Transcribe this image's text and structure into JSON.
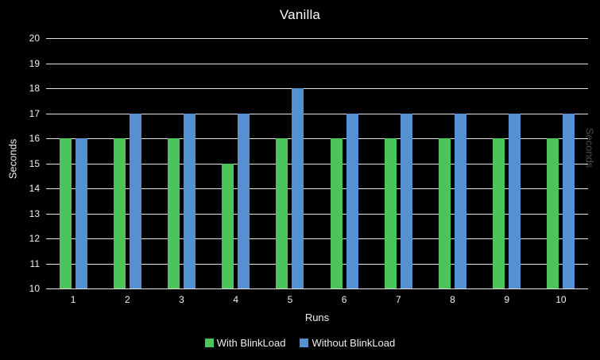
{
  "axis": {
    "y_label_left": "Seconds",
    "y_label_right": "Seconds",
    "x_label": "Runs"
  },
  "chart_data": {
    "type": "bar",
    "title": "Vanilla",
    "categories": [
      "1",
      "2",
      "3",
      "4",
      "5",
      "6",
      "7",
      "8",
      "9",
      "10"
    ],
    "series": [
      {
        "name": "With BlinkLoad",
        "color": "#4bc45c",
        "values": [
          16,
          16,
          16,
          15,
          16,
          16,
          16,
          16,
          16,
          16
        ]
      },
      {
        "name": "Without BlinkLoad",
        "color": "#5590d2",
        "values": [
          16,
          17,
          17,
          17,
          18,
          17,
          17,
          17,
          17,
          17
        ]
      }
    ],
    "xlabel": "Runs",
    "ylabel": "Seconds",
    "ylim": [
      10,
      20
    ],
    "ytick_step": 1,
    "grid": true,
    "legend_position": "bottom"
  },
  "colors": {
    "background": "#000000",
    "gridline": "#e3e3e3",
    "tick_text": "#f0f0f0",
    "title_text": "#fafafa",
    "legend_text": "#eeeeee",
    "right_axis_title_text": "#4a4a4a"
  }
}
